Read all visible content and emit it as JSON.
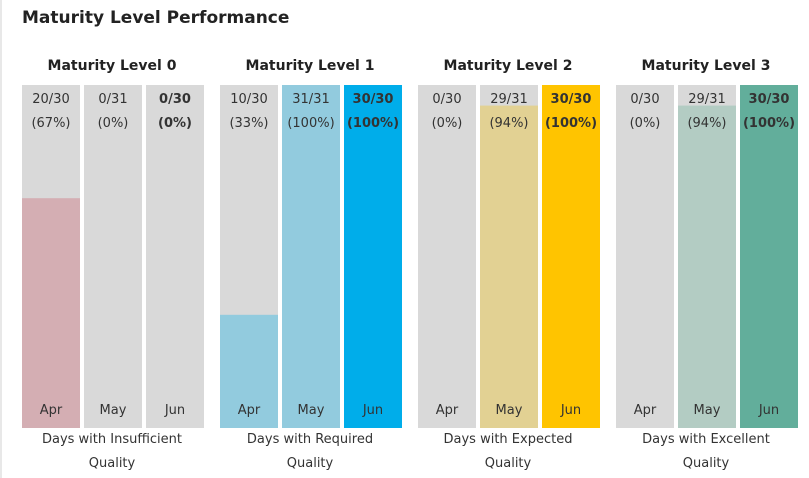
{
  "title": "Maturity Level Performance",
  "chart_data": [
    {
      "type": "bar",
      "title": "Maturity Level 0",
      "categories": [
        "Apr",
        "May",
        "Jun"
      ],
      "values": [
        67,
        0,
        0
      ],
      "counts": [
        "20/30",
        "0/31",
        "0/30"
      ],
      "value_labels": [
        "(67%)",
        "(0%)",
        "(0%)"
      ],
      "xlabel": "Days with Insufficient Quality",
      "colors": [
        "#d4aeb3",
        "#d4aeb3",
        "#d4aeb3"
      ],
      "highlight": 2,
      "ylim": [
        0,
        100
      ]
    },
    {
      "type": "bar",
      "title": "Maturity Level 1",
      "categories": [
        "Apr",
        "May",
        "Jun"
      ],
      "values": [
        33,
        100,
        100
      ],
      "counts": [
        "10/30",
        "31/31",
        "30/30"
      ],
      "value_labels": [
        "(33%)",
        "(100%)",
        "(100%)"
      ],
      "xlabel": "Days with Required Quality",
      "colors": [
        "#92cbde",
        "#92cbde",
        "#00adea"
      ],
      "highlight": 2,
      "ylim": [
        0,
        100
      ]
    },
    {
      "type": "bar",
      "title": "Maturity Level 2",
      "categories": [
        "Apr",
        "May",
        "Jun"
      ],
      "values": [
        0,
        94,
        100
      ],
      "counts": [
        "0/30",
        "29/31",
        "30/30"
      ],
      "value_labels": [
        "(0%)",
        "(94%)",
        "(100%)"
      ],
      "xlabel": "Days with Expected Quality",
      "colors": [
        "#e2d193",
        "#e2d193",
        "#ffc400"
      ],
      "highlight": 2,
      "ylim": [
        0,
        100
      ]
    },
    {
      "type": "bar",
      "title": "Maturity Level 3",
      "categories": [
        "Apr",
        "May",
        "Jun"
      ],
      "values": [
        0,
        94,
        100
      ],
      "counts": [
        "0/30",
        "29/31",
        "30/30"
      ],
      "value_labels": [
        "(0%)",
        "(94%)",
        "(100%)"
      ],
      "xlabel": "Days with Excellent Quality",
      "colors": [
        "#b3ccc3",
        "#b3ccc3",
        "#62ae9b"
      ],
      "highlight": 2,
      "ylim": [
        0,
        100
      ]
    }
  ]
}
